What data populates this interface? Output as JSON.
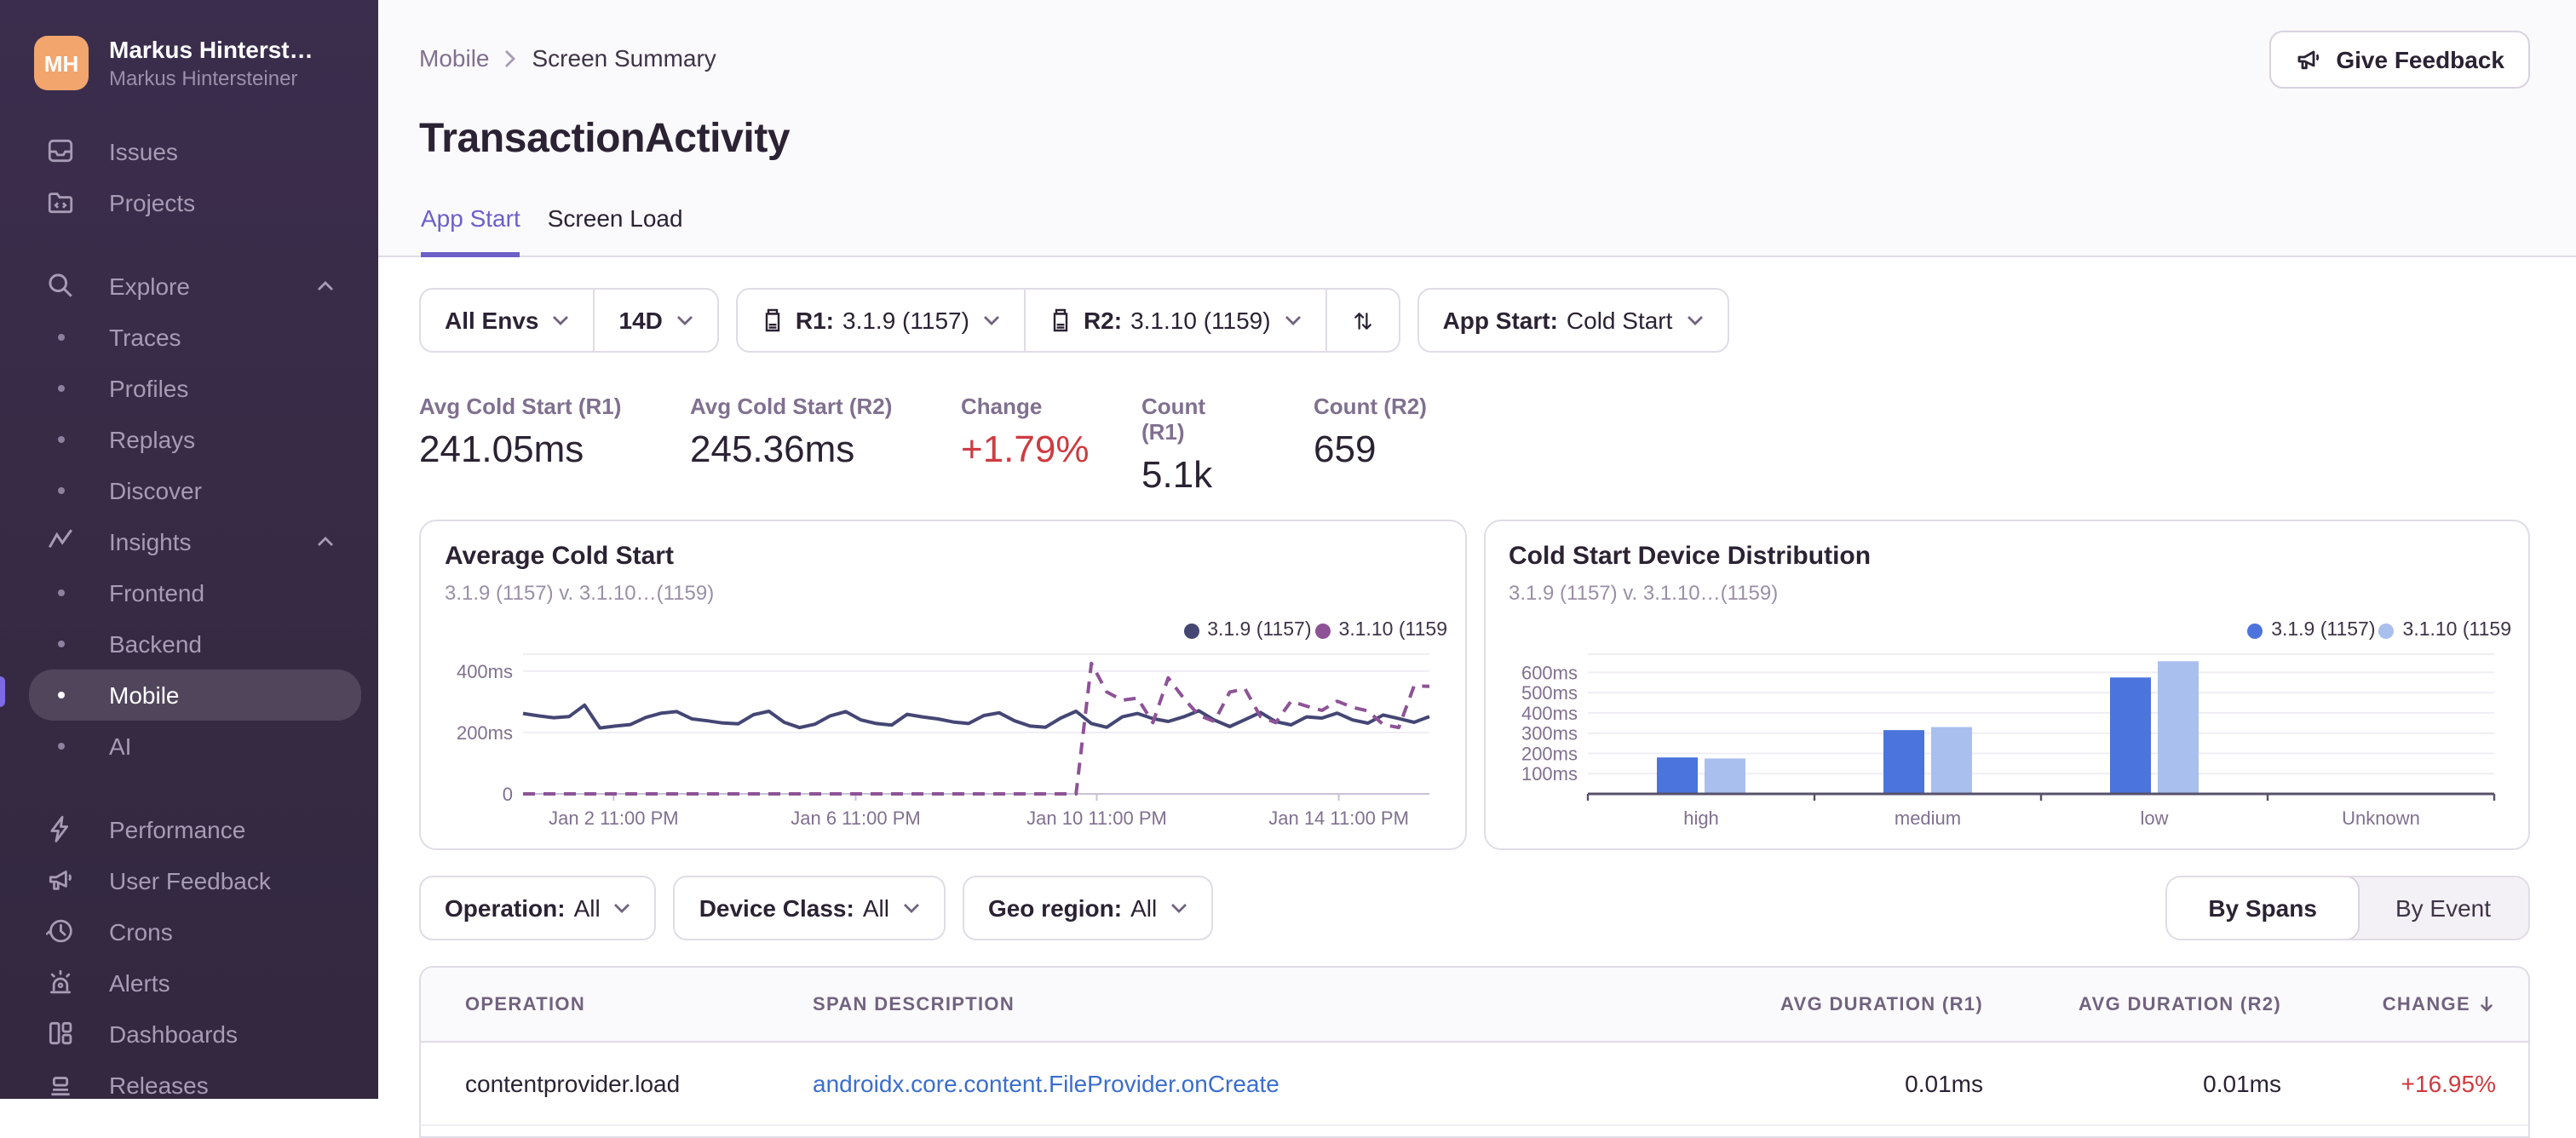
{
  "app": {
    "accent_color": "#6C5FC7",
    "link_color": "#3B6ECC",
    "negative_color": "#CE3B41"
  },
  "sidebar": {
    "user": {
      "initials": "MH",
      "display_name": "Markus Hinterst…",
      "full_name": "Markus Hintersteiner",
      "avatar_color": "#F2A56D"
    },
    "nav": [
      {
        "label": "Issues"
      },
      {
        "label": "Projects"
      },
      {
        "label": "Explore"
      },
      {
        "label": "Traces"
      },
      {
        "label": "Profiles"
      },
      {
        "label": "Replays"
      },
      {
        "label": "Discover"
      },
      {
        "label": "Insights"
      },
      {
        "label": "Frontend"
      },
      {
        "label": "Backend"
      },
      {
        "label": "Mobile",
        "active": true
      },
      {
        "label": "AI"
      },
      {
        "label": "Performance"
      },
      {
        "label": "User Feedback"
      },
      {
        "label": "Crons"
      },
      {
        "label": "Alerts"
      },
      {
        "label": "Dashboards"
      },
      {
        "label": "Releases"
      }
    ]
  },
  "header": {
    "breadcrumb": {
      "parent": "Mobile",
      "current": "Screen Summary"
    },
    "title": "TransactionActivity",
    "tabs": [
      {
        "label": "App Start"
      },
      {
        "label": "Screen Load"
      }
    ],
    "active_tab": "App Start",
    "feedback_label": "Give Feedback"
  },
  "filters": {
    "env": {
      "label": "All Envs"
    },
    "period": {
      "label": "14D"
    },
    "r1": {
      "label": "R1:",
      "value": "3.1.9 (1157)"
    },
    "r2": {
      "label": "R2:",
      "value": "3.1.10 (1159)"
    },
    "app_start": {
      "label": "App Start:",
      "value": "Cold Start"
    }
  },
  "stats": [
    {
      "label": "Avg Cold Start (R1)",
      "value": "241.05ms"
    },
    {
      "label": "Avg Cold Start (R2)",
      "value": "245.36ms"
    },
    {
      "label": "Change",
      "value": "+1.79%",
      "color": "#CE3B41"
    },
    {
      "label": "Count (R1)",
      "value": "5.1k"
    },
    {
      "label": "Count (R2)",
      "value": "659"
    }
  ],
  "span_filters": [
    {
      "label": "Operation:",
      "value": "All"
    },
    {
      "label": "Device Class:",
      "value": "All"
    },
    {
      "label": "Geo region:",
      "value": "All"
    }
  ],
  "view_toggle": {
    "options": [
      "By Spans",
      "By Event"
    ],
    "active": "By Spans"
  },
  "table": {
    "columns": [
      "OPERATION",
      "SPAN DESCRIPTION",
      "AVG DURATION (R1)",
      "AVG DURATION (R2)",
      "CHANGE"
    ],
    "sort_column": "CHANGE",
    "sort_direction": "desc",
    "rows": [
      {
        "operation": "contentprovider.load",
        "description": "androidx.core.content.FileProvider.onCreate",
        "r1": "0.01ms",
        "r2": "0.01ms",
        "change": "+16.95%",
        "change_color": "#CE3B41"
      }
    ]
  },
  "chart_data": [
    {
      "type": "line",
      "title": "Average Cold Start",
      "subtitle": "3.1.9 (1157) v. 3.1.10…(1159)",
      "legend": [
        "3.1.9 (1157)",
        "3.1.10 (1159"
      ],
      "ylim": [
        0,
        455
      ],
      "ytick_values": [
        0,
        200,
        400
      ],
      "ytick_labels": [
        "0",
        "200ms",
        "400ms"
      ],
      "x_ticks": [
        "Jan 2 11:00 PM",
        "Jan 6 11:00 PM",
        "Jan 10 11:00 PM",
        "Jan 14 11:00 PM"
      ],
      "x_tick_pos": [
        0.1,
        0.367,
        0.633,
        0.9
      ],
      "grid": true,
      "legend_position": "top-right",
      "series": [
        {
          "name": "3.1.9 (1157)",
          "color": "#444674",
          "dashed": false,
          "values": [
            262,
            254,
            248,
            252,
            289,
            215,
            221,
            226,
            249,
            263,
            268,
            244,
            238,
            231,
            228,
            258,
            269,
            233,
            216,
            227,
            254,
            268,
            241,
            229,
            224,
            259,
            251,
            244,
            234,
            229,
            255,
            264,
            238,
            221,
            217,
            247,
            269,
            229,
            217,
            251,
            262,
            245,
            236,
            251,
            271,
            240,
            219,
            242,
            265,
            235,
            225,
            251,
            247,
            263,
            241,
            230,
            257,
            245,
            233,
            252
          ]
        },
        {
          "name": "3.1.10 (1159)",
          "color": "#8D5396",
          "dashed": true,
          "values": [
            0,
            0,
            0,
            0,
            0,
            0,
            0,
            0,
            0,
            0,
            0,
            0,
            0,
            0,
            0,
            0,
            0,
            0,
            0,
            0,
            0,
            0,
            0,
            0,
            0,
            0,
            0,
            0,
            0,
            0,
            0,
            0,
            0,
            0,
            0,
            0,
            0,
            425,
            332,
            305,
            312,
            232,
            378,
            312,
            256,
            236,
            332,
            342,
            252,
            232,
            302,
            286,
            272,
            302,
            282,
            270,
            226,
            216,
            352,
            350
          ]
        }
      ]
    },
    {
      "type": "bar",
      "title": "Cold Start Device Distribution",
      "subtitle": "3.1.9 (1157) v. 3.1.10…(1159)",
      "legend": [
        "3.1.9 (1157)",
        "3.1.10 (1159"
      ],
      "categories": [
        "high",
        "medium",
        "low",
        "Unknown"
      ],
      "ylim": [
        0,
        690
      ],
      "ytick_values": [
        100,
        200,
        300,
        400,
        500,
        600
      ],
      "ytick_labels": [
        "100ms",
        "200ms",
        "300ms",
        "400ms",
        "500ms",
        "600ms"
      ],
      "grid": true,
      "legend_position": "top-right",
      "series": [
        {
          "name": "3.1.9 (1157)",
          "color": "#4B74DC",
          "values": [
            180,
            315,
            575,
            0
          ]
        },
        {
          "name": "3.1.10 (1159)",
          "color": "#A9BFEE",
          "values": [
            175,
            330,
            655,
            0
          ]
        }
      ]
    }
  ]
}
